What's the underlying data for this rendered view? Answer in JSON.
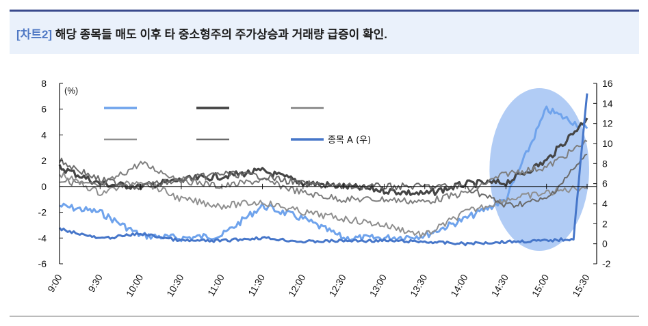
{
  "header": {
    "tag": "[차트2]",
    "title": "해당 종목들 매도 이후 타 중소형주의 주가상승과 거래량 급증이 확인."
  },
  "chart_data": {
    "type": "line",
    "unit_left": "(%)",
    "left_axis": {
      "min": -6,
      "max": 8,
      "ticks": [
        "8",
        "6",
        "4",
        "2",
        "0",
        "-2",
        "-4",
        "-6"
      ]
    },
    "right_axis": {
      "min": -2,
      "max": 16,
      "ticks": [
        "16",
        "14",
        "12",
        "10",
        "8",
        "6",
        "4",
        "2",
        "0",
        "-2"
      ]
    },
    "x_ticks": [
      "9:00",
      "9:30",
      "10:00",
      "10:30",
      "11:00",
      "11:30",
      "12:00",
      "12:30",
      "13:00",
      "13:30",
      "14:00",
      "14:30",
      "15:00",
      "15:30"
    ],
    "highlight": {
      "label": "",
      "x_from": "14:30",
      "x_to": "15:30",
      "color": "#a9c7f4"
    },
    "series": [
      {
        "name": "",
        "color": "#6fa3ec",
        "axis": "left",
        "x": [
          "9:00",
          "9:30",
          "10:00",
          "10:30",
          "11:00",
          "11:30",
          "12:00",
          "12:30",
          "13:00",
          "13:30",
          "14:00",
          "14:30",
          "15:00",
          "15:30"
        ],
        "values": [
          -1.5,
          -2.0,
          -3.8,
          -4.0,
          -3.8,
          -1.5,
          -2.5,
          -4.0,
          -4.0,
          -3.8,
          -2.5,
          -1.0,
          6.0,
          4.5
        ]
      },
      {
        "name": "",
        "color": "#454545",
        "axis": "left",
        "x": [
          "9:00",
          "9:30",
          "10:00",
          "10:30",
          "11:00",
          "11:30",
          "12:00",
          "12:30",
          "13:00",
          "13:30",
          "14:00",
          "14:30",
          "15:00",
          "15:30"
        ],
        "values": [
          1.5,
          0.2,
          0.0,
          0.5,
          0.8,
          1.2,
          0.3,
          0.0,
          -0.3,
          -0.6,
          0.2,
          0.3,
          2.0,
          5.3
        ]
      },
      {
        "name": "",
        "color": "#7e7e7e",
        "axis": "left",
        "x": [
          "9:00",
          "9:30",
          "10:00",
          "10:30",
          "11:00",
          "11:30",
          "12:00",
          "12:30",
          "13:00",
          "13:30",
          "14:00",
          "14:30",
          "15:00",
          "15:30"
        ],
        "values": [
          0.5,
          0.0,
          1.8,
          0.5,
          0.0,
          0.5,
          -0.5,
          -1.0,
          -1.0,
          -1.2,
          -0.5,
          1.0,
          1.5,
          3.5
        ]
      },
      {
        "name": "",
        "color": "#8e8e8e",
        "axis": "left",
        "x": [
          "9:00",
          "9:30",
          "10:00",
          "10:30",
          "11:00",
          "11:30",
          "12:00",
          "12:30",
          "13:00",
          "13:30",
          "14:00",
          "14:30",
          "15:00",
          "15:30"
        ],
        "values": [
          1.0,
          -0.5,
          0.5,
          -1.0,
          -1.5,
          -1.2,
          -2.0,
          -2.5,
          -3.0,
          -3.8,
          -2.0,
          -1.0,
          -0.5,
          0.0
        ]
      },
      {
        "name": "",
        "color": "#6a6a6a",
        "axis": "left",
        "x": [
          "9:00",
          "9:30",
          "10:00",
          "10:30",
          "11:00",
          "11:30",
          "12:00",
          "12:30",
          "13:00",
          "13:30",
          "14:00",
          "14:30",
          "15:00",
          "15:30"
        ],
        "values": [
          2.0,
          0.5,
          0.0,
          0.5,
          1.0,
          0.8,
          0.2,
          0.0,
          0.0,
          0.0,
          0.0,
          -1.5,
          -1.0,
          2.5
        ]
      },
      {
        "name": "종목 A (우)",
        "color": "#4676c9",
        "axis": "right",
        "x": [
          "9:00",
          "9:30",
          "10:00",
          "10:30",
          "11:00",
          "11:30",
          "12:00",
          "12:30",
          "13:00",
          "13:30",
          "14:00",
          "14:30",
          "15:00",
          "15:20",
          "15:25",
          "15:30"
        ],
        "values": [
          1.5,
          0.5,
          1.0,
          0.3,
          0.3,
          0.6,
          0.2,
          0.3,
          0.3,
          0.2,
          0.0,
          0.2,
          0.3,
          0.5,
          8.0,
          15.0
        ]
      }
    ]
  }
}
